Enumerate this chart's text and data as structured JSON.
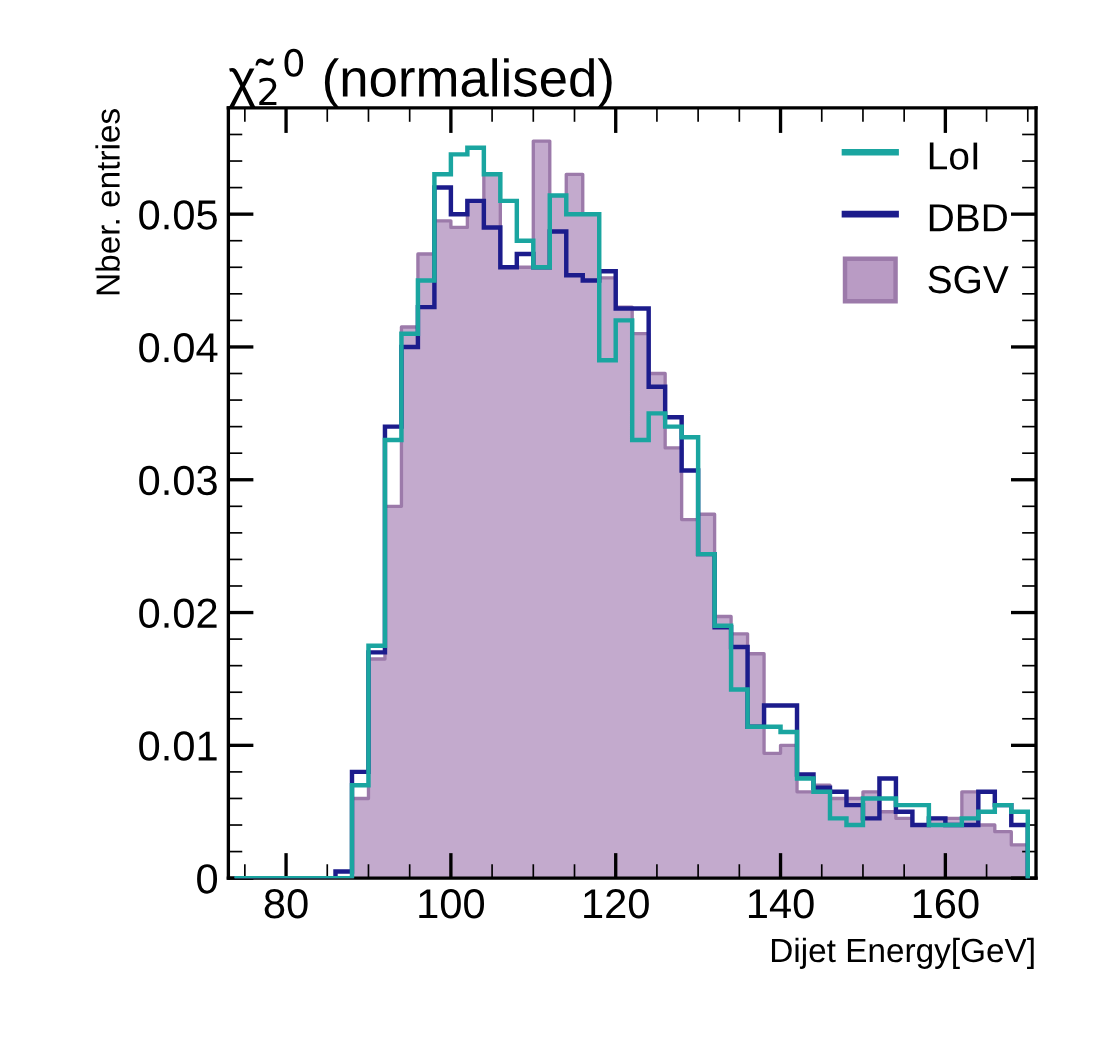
{
  "chart_data": {
    "type": "histogram",
    "title": "χ̃$_{2}$$^{0}$ (normalised)",
    "xlabel": "Dijet Energy[GeV]",
    "ylabel": "Nber. entries",
    "bins": [
      74,
      76,
      78,
      80,
      82,
      84,
      86,
      88,
      90,
      92,
      94,
      96,
      98,
      100,
      102,
      104,
      106,
      108,
      110,
      112,
      114,
      116,
      118,
      120,
      122,
      124,
      126,
      128,
      130,
      132,
      134,
      136,
      138,
      140,
      142,
      144,
      146,
      148,
      150,
      152,
      154,
      156,
      158,
      160,
      162,
      164,
      166,
      168,
      170
    ],
    "series": [
      {
        "name": "LoI",
        "color": "#1aa5a0",
        "values": [
          0,
          0,
          0,
          0,
          0,
          0,
          0,
          0.007,
          0.0175,
          0.033,
          0.041,
          0.045,
          0.053,
          0.0545,
          0.055,
          0.053,
          0.051,
          0.048,
          0.046,
          0.0514,
          0.05,
          0.05,
          0.039,
          0.042,
          0.033,
          0.035,
          0.034,
          0.0332,
          0.0244,
          0.019,
          0.0142,
          0.0114,
          0.0114,
          0.011,
          0.0075,
          0.0065,
          0.0045,
          0.004,
          0.006,
          0.006,
          0.0055,
          0.0055,
          0.004,
          0.004,
          0.0045,
          0.005,
          0.0055,
          0.005
        ]
      },
      {
        "name": "DBD",
        "color": "#1c1c8c",
        "values": [
          0,
          0,
          0,
          0,
          0,
          0,
          0.0005,
          0.008,
          0.017,
          0.034,
          0.04,
          0.043,
          0.052,
          0.05,
          0.051,
          0.049,
          0.046,
          0.047,
          0.046,
          0.0487,
          0.0454,
          0.045,
          0.0457,
          0.0429,
          0.0429,
          0.037,
          0.0347,
          0.0307,
          0.0244,
          0.0189,
          0.0174,
          0.0114,
          0.013,
          0.013,
          0.0078,
          0.0068,
          0.0065,
          0.0055,
          0.0045,
          0.0075,
          0.005,
          0.004,
          0.0045,
          0.004,
          0.004,
          0.0065,
          0.0055,
          0.004
        ]
      },
      {
        "name": "SGV",
        "color": "#b99bc4",
        "values": [
          0,
          0,
          0,
          0,
          0,
          0,
          0,
          0.006,
          0.0165,
          0.028,
          0.0415,
          0.047,
          0.0495,
          0.049,
          0.051,
          0.053,
          0.046,
          0.046,
          0.0555,
          0.0514,
          0.053,
          0.05,
          0.0452,
          0.043,
          0.041,
          0.038,
          0.0324,
          0.027,
          0.0274,
          0.0197,
          0.0184,
          0.0169,
          0.0094,
          0.01,
          0.0065,
          0.007,
          0.006,
          0.006,
          0.0065,
          0.005,
          0.0045,
          0.004,
          0.0045,
          0.0045,
          0.0065,
          0.004,
          0.0035,
          0.0025
        ]
      }
    ],
    "xlim": [
      73,
      171
    ],
    "xticks": [
      80,
      100,
      120,
      140,
      160
    ],
    "ylim": [
      0,
      0.058
    ],
    "yticks": [
      0,
      0.01,
      0.02,
      0.03,
      0.04,
      0.05
    ],
    "legend": "top right",
    "grid": false
  }
}
